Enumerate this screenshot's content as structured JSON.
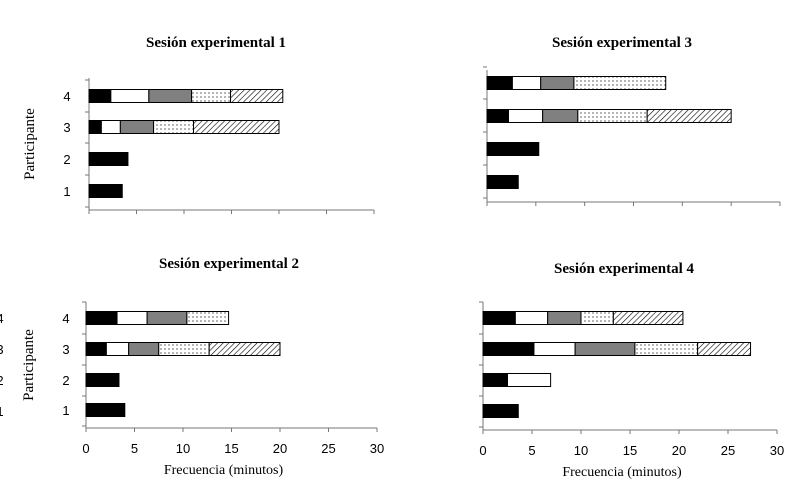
{
  "colors": {
    "black": "#000000",
    "white": "#ffffff",
    "gray": "#808080",
    "dots": "#000000",
    "hatch": "#000000"
  },
  "segment_styles": [
    "black",
    "white",
    "gray",
    "dots",
    "hatch"
  ],
  "chart_data": [
    {
      "type": "bar",
      "orientation": "horizontal",
      "stacked": true,
      "title": "Sesión experimental 1",
      "ylabel": "Participante",
      "xlabel": "",
      "categories": [
        "1",
        "2",
        "3",
        "4"
      ],
      "xlim": [
        0,
        30
      ],
      "x_ticks_shown": false,
      "bars": [
        {
          "category": "1",
          "segments": [
            3.5
          ]
        },
        {
          "category": "2",
          "segments": [
            4.1
          ]
        },
        {
          "category": "3",
          "segments": [
            1.3,
            2.0,
            3.5,
            4.2,
            9.0
          ]
        },
        {
          "category": "4",
          "segments": [
            2.3,
            4.0,
            4.5,
            4.1,
            5.5
          ]
        }
      ]
    },
    {
      "type": "bar",
      "orientation": "horizontal",
      "stacked": true,
      "title": "Sesión experimental 3",
      "ylabel": "",
      "xlabel": "",
      "categories": [
        "1",
        "2",
        "3",
        "4"
      ],
      "xlim": [
        0,
        30
      ],
      "x_ticks_shown": false,
      "y_ticks_shown": false,
      "bars": [
        {
          "category": "1",
          "segments": [
            3.2
          ]
        },
        {
          "category": "2",
          "segments": [
            5.3
          ]
        },
        {
          "category": "3",
          "segments": [
            2.2,
            3.5,
            3.6,
            7.1,
            8.6
          ]
        },
        {
          "category": "4",
          "segments": [
            2.6,
            2.9,
            3.4,
            9.4
          ]
        }
      ]
    },
    {
      "type": "bar",
      "orientation": "horizontal",
      "stacked": true,
      "title": "Sesión experimental 2",
      "ylabel": "Participante",
      "xlabel": "Frecuencia (minutos)",
      "categories": [
        "1",
        "2",
        "3",
        "4"
      ],
      "xlim": [
        0,
        30
      ],
      "x_ticks": [
        0,
        5,
        10,
        15,
        20,
        25,
        30
      ],
      "bars": [
        {
          "category": "1",
          "segments": [
            4.0
          ]
        },
        {
          "category": "2",
          "segments": [
            3.4
          ]
        },
        {
          "category": "3",
          "segments": [
            2.1,
            2.3,
            3.1,
            5.2,
            7.3
          ]
        },
        {
          "category": "4",
          "segments": [
            3.2,
            3.1,
            4.1,
            4.3
          ]
        }
      ]
    },
    {
      "type": "bar",
      "orientation": "horizontal",
      "stacked": true,
      "title": "Sesión experimental 4",
      "ylabel": "",
      "xlabel": "Frecuencia (minutos)",
      "categories": [
        "1",
        "2",
        "3",
        "4"
      ],
      "xlim": [
        0,
        30
      ],
      "x_ticks": [
        0,
        5,
        10,
        15,
        20,
        25,
        30
      ],
      "bars": [
        {
          "category": "1",
          "segments": [
            3.6
          ]
        },
        {
          "category": "2",
          "segments": [
            2.5,
            4.4
          ]
        },
        {
          "category": "3",
          "segments": [
            5.2,
            4.2,
            6.1,
            6.4,
            5.4
          ]
        },
        {
          "category": "4",
          "segments": [
            3.3,
            3.3,
            3.4,
            3.3,
            7.1
          ]
        }
      ]
    }
  ]
}
